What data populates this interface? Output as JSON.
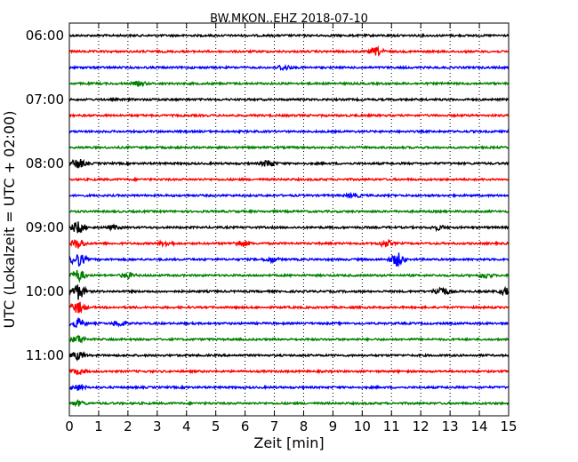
{
  "chart_data": {
    "type": "line",
    "title": "BW.MKON..EHZ 2018-07-10",
    "xlabel": "Zeit  [min]",
    "ylabel": "UTC (Lokalzeit = UTC + 02:00)",
    "xlim": [
      0,
      15
    ],
    "x_ticks": [
      "0",
      "1",
      "2",
      "3",
      "4",
      "5",
      "6",
      "7",
      "8",
      "9",
      "10",
      "11",
      "12",
      "13",
      "14",
      "15"
    ],
    "y_ticks": [
      "06:00",
      "07:00",
      "08:00",
      "09:00",
      "10:00",
      "11:00"
    ],
    "grid": "vertical-dotted",
    "row_minutes": 15,
    "start_time": "06:00",
    "trace_colors": [
      "#000000",
      "#ff0000",
      "#0000ff",
      "#008000"
    ],
    "traces": [
      {
        "start": "06:00",
        "events": []
      },
      {
        "start": "06:15",
        "events": [
          {
            "minute": 10.5,
            "amplitude": 2.0
          }
        ]
      },
      {
        "start": "06:30",
        "events": [
          {
            "minute": 7.3,
            "amplitude": 1.3
          }
        ]
      },
      {
        "start": "06:45",
        "events": [
          {
            "minute": 2.4,
            "amplitude": 1.0
          }
        ]
      },
      {
        "start": "07:00",
        "events": []
      },
      {
        "start": "07:15",
        "events": []
      },
      {
        "start": "07:30",
        "events": []
      },
      {
        "start": "07:45",
        "events": []
      },
      {
        "start": "08:00",
        "events": [
          {
            "minute": 0.3,
            "amplitude": 2.5
          },
          {
            "minute": 6.8,
            "amplitude": 1.8
          }
        ]
      },
      {
        "start": "08:15",
        "events": []
      },
      {
        "start": "08:30",
        "events": [
          {
            "minute": 9.7,
            "amplitude": 1.0
          }
        ]
      },
      {
        "start": "08:45",
        "events": []
      },
      {
        "start": "09:00",
        "events": [
          {
            "minute": 0.3,
            "amplitude": 3.0
          },
          {
            "minute": 1.5,
            "amplitude": 1.0
          },
          {
            "minute": 12.6,
            "amplitude": 1.0
          }
        ]
      },
      {
        "start": "09:15",
        "events": [
          {
            "minute": 0.3,
            "amplitude": 2.5
          },
          {
            "minute": 3.3,
            "amplitude": 1.2
          },
          {
            "minute": 5.9,
            "amplitude": 1.5
          },
          {
            "minute": 10.8,
            "amplitude": 1.6
          }
        ]
      },
      {
        "start": "09:30",
        "events": [
          {
            "minute": 0.3,
            "amplitude": 3.5
          },
          {
            "minute": 6.9,
            "amplitude": 1.2
          },
          {
            "minute": 11.2,
            "amplitude": 3.5
          }
        ]
      },
      {
        "start": "09:45",
        "events": [
          {
            "minute": 0.3,
            "amplitude": 3.0
          },
          {
            "minute": 2.0,
            "amplitude": 1.3
          },
          {
            "minute": 14.2,
            "amplitude": 1.2
          }
        ]
      },
      {
        "start": "10:00",
        "events": [
          {
            "minute": 0.3,
            "amplitude": 4.0
          },
          {
            "minute": 12.7,
            "amplitude": 2.5
          },
          {
            "minute": 14.95,
            "amplitude": 2.0
          }
        ]
      },
      {
        "start": "10:15",
        "events": [
          {
            "minute": 0.3,
            "amplitude": 3.0
          }
        ]
      },
      {
        "start": "10:30",
        "events": [
          {
            "minute": 0.3,
            "amplitude": 2.5
          },
          {
            "minute": 1.7,
            "amplitude": 1.4
          }
        ]
      },
      {
        "start": "10:45",
        "events": [
          {
            "minute": 0.3,
            "amplitude": 2.0
          }
        ]
      },
      {
        "start": "11:00",
        "events": [
          {
            "minute": 0.3,
            "amplitude": 2.0
          }
        ]
      },
      {
        "start": "11:15",
        "events": [
          {
            "minute": 0.3,
            "amplitude": 1.5
          }
        ]
      },
      {
        "start": "11:30",
        "events": [
          {
            "minute": 0.3,
            "amplitude": 1.5
          }
        ]
      },
      {
        "start": "11:45",
        "events": [
          {
            "minute": 0.3,
            "amplitude": 1.2
          }
        ]
      }
    ]
  }
}
